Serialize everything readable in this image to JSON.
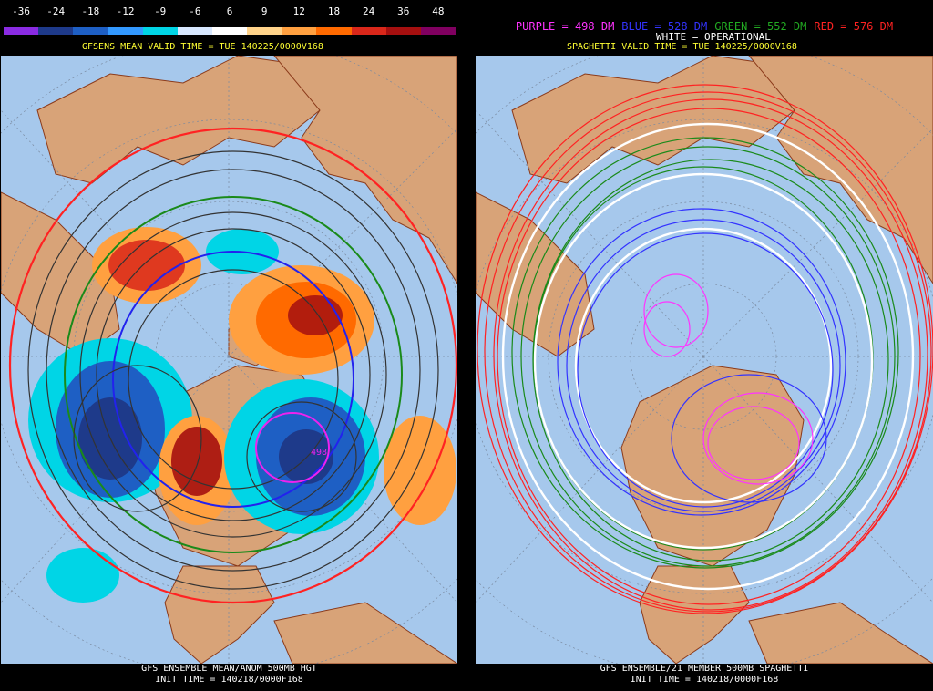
{
  "left_panel": {
    "colorbar": {
      "labels": [
        "-36",
        "-24",
        "-18",
        "-12",
        "-9",
        "-6",
        "6",
        "9",
        "12",
        "18",
        "24",
        "36",
        "48"
      ],
      "colors": [
        "#8a2be2",
        "#1e3a8a",
        "#1e5fc4",
        "#3399ff",
        "#00d5e6",
        "#d8e8ff",
        "#ffffff",
        "#ffd38a",
        "#ffa040",
        "#ff6a00",
        "#d9271a",
        "#a50f0f",
        "#800060"
      ]
    },
    "title": "GFSENS MEAN VALID TIME = TUE 140225/0000V168",
    "contour_label": "498",
    "footer_line1": "GFS ENSEMBLE MEAN/ANOM 500MB HGT",
    "footer_line2": "INIT TIME = 140218/0000F168"
  },
  "right_panel": {
    "legend": [
      {
        "text": "PURPLE = 498 DM",
        "color": "#ff33ff"
      },
      {
        "text": "BLUE = 528 DM",
        "color": "#3333ff"
      },
      {
        "text": "GREEN = 552 DM",
        "color": "#22aa22"
      },
      {
        "text": "RED = 576 DM",
        "color": "#ff2222"
      }
    ],
    "operational_label": "WHITE = OPERATIONAL",
    "title": "SPAGHETTI VALID TIME = TUE 140225/0000V168",
    "footer_line1": "GFS ENSEMBLE/21 MEMBER 500MB SPAGHETTI",
    "footer_line2": "INIT TIME = 140218/0000F168"
  },
  "colors": {
    "ocean": "#a6c8ec",
    "land": "#d8a378",
    "coast": "#8b3a1a",
    "grid": "#7a8aa0"
  }
}
